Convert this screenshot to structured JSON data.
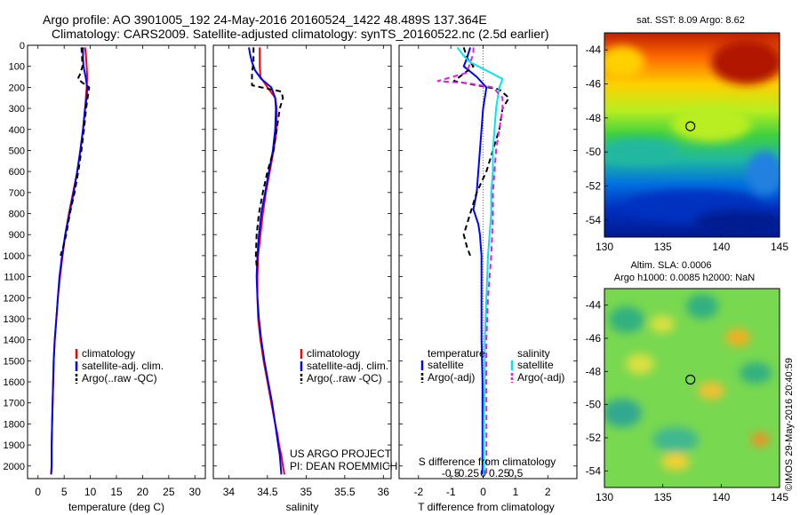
{
  "header": {
    "title_line1": "Argo profile: AO 3901005_192 24-May-2016 20160524_1422 48.489S 137.364E",
    "title_line2": "Climatology: CARS2009. Satellite-adjusted climatology: synTS_20160522.nc (2.5d earlier)"
  },
  "credits": {
    "project": "US ARGO PROJECT",
    "pi": "PI: DEAN ROEMMICH",
    "imos": "©IMOS 29-May-2016 20:40:59"
  },
  "colors": {
    "climatology": "#ff0000",
    "satellite": "#0000ff",
    "argo": "#000000",
    "satellite_s": "#00e5ee",
    "argo_s": "#e020e0"
  },
  "chart_data": [
    {
      "type": "line",
      "name": "temperature-panel",
      "xlabel": "temperature (deg C)",
      "xlim": [
        -2,
        32
      ],
      "xticks": [
        0,
        5,
        10,
        15,
        20,
        25,
        30
      ],
      "ylim": [
        2060,
        0
      ],
      "yticks": [
        0,
        100,
        200,
        300,
        400,
        500,
        600,
        700,
        800,
        900,
        1000,
        1100,
        1200,
        1300,
        1400,
        1500,
        1600,
        1700,
        1800,
        1900,
        2000
      ],
      "legend": [
        "climatology",
        "satellite-adj. clim.",
        "Argo(..raw -QC)"
      ],
      "series": [
        {
          "name": "climatology",
          "color": "#ff0000",
          "dash": false,
          "x": [
            9.0,
            9.2,
            9.3,
            9.4,
            9.3,
            9.0,
            8.6,
            8.1,
            7.5,
            6.7,
            5.9,
            5.2,
            4.7,
            4.2,
            3.8,
            3.5,
            3.2,
            3.0,
            2.9,
            2.8,
            2.7,
            2.6,
            2.6,
            2.5
          ],
          "y": [
            10,
            60,
            100,
            150,
            200,
            300,
            400,
            500,
            600,
            700,
            800,
            900,
            1000,
            1100,
            1200,
            1300,
            1400,
            1500,
            1600,
            1700,
            1800,
            1900,
            2000,
            2040
          ]
        },
        {
          "name": "satellite-adj. clim.",
          "color": "#0000ff",
          "dash": false,
          "x": [
            8.6,
            8.6,
            8.7,
            9.1,
            9.4,
            9.3,
            9.0,
            8.6,
            8.1,
            7.5,
            6.8,
            6.0,
            5.2,
            4.6,
            4.1,
            3.8,
            3.5,
            3.2,
            3.0,
            2.9,
            2.8,
            2.7,
            2.6,
            2.6,
            2.5
          ],
          "y": [
            10,
            60,
            100,
            150,
            200,
            250,
            300,
            400,
            500,
            600,
            700,
            800,
            900,
            1000,
            1100,
            1200,
            1300,
            1400,
            1500,
            1600,
            1700,
            1800,
            1900,
            2000,
            2040
          ]
        },
        {
          "name": "Argo(..raw -QC)",
          "color": "#000000",
          "dash": true,
          "x": [
            8.3,
            8.4,
            8.5,
            8.0,
            7.6,
            8.6,
            9.8,
            9.6,
            9.2,
            8.8,
            8.3,
            7.7,
            7.0,
            6.1,
            5.4,
            4.8,
            4.3
          ],
          "y": [
            10,
            50,
            100,
            140,
            160,
            180,
            200,
            230,
            300,
            400,
            500,
            600,
            700,
            800,
            900,
            960,
            1000
          ]
        }
      ]
    },
    {
      "type": "line",
      "name": "salinity-panel",
      "xlabel": "salinity",
      "xlim": [
        33.8,
        36.1
      ],
      "xticks": [
        34,
        34.5,
        35,
        35.5,
        36
      ],
      "ylim": [
        2060,
        0
      ],
      "legend": [
        "climatology",
        "satellite-adj. clim.",
        "Argo(..raw -QC)"
      ],
      "series": [
        {
          "name": "climatology",
          "color": "#ff0000",
          "dash": false,
          "x": [
            34.4,
            34.4,
            34.41,
            34.5,
            34.6,
            34.62,
            34.62,
            34.58,
            34.53,
            34.48,
            34.44,
            34.41,
            34.38,
            34.37,
            34.37,
            34.38,
            34.41,
            34.45,
            34.5,
            34.55,
            34.6,
            34.63,
            34.65,
            34.68,
            34.7,
            34.72
          ],
          "y": [
            10,
            100,
            150,
            200,
            250,
            300,
            400,
            500,
            600,
            700,
            800,
            900,
            1000,
            1100,
            1200,
            1300,
            1400,
            1500,
            1600,
            1700,
            1800,
            1850,
            1900,
            1950,
            2000,
            2040
          ]
        },
        {
          "name": "satellite-adj. clim.",
          "color": "#0000ff",
          "dash": false,
          "x": [
            34.26,
            34.28,
            34.3,
            34.34,
            34.42,
            34.55,
            34.6,
            34.61,
            34.6,
            34.57,
            34.52,
            34.47,
            34.42,
            34.39,
            34.37,
            34.36,
            34.37,
            34.39,
            34.42,
            34.46,
            34.51,
            34.56,
            34.6,
            34.62,
            34.64,
            34.66,
            34.68
          ],
          "y": [
            10,
            50,
            80,
            120,
            160,
            200,
            250,
            300,
            400,
            500,
            600,
            700,
            800,
            900,
            1000,
            1100,
            1200,
            1300,
            1400,
            1500,
            1600,
            1700,
            1800,
            1850,
            1900,
            1950,
            2040
          ]
        },
        {
          "name": "Argo(..raw -QC)",
          "color": "#000000",
          "dash": true,
          "x": [
            34.32,
            34.32,
            34.3,
            34.3,
            34.42,
            34.68,
            34.7,
            34.66,
            34.62,
            34.58,
            34.5,
            34.44,
            34.39,
            34.36,
            34.35,
            34.36
          ],
          "y": [
            10,
            80,
            130,
            190,
            200,
            220,
            250,
            300,
            400,
            500,
            600,
            700,
            800,
            900,
            1000,
            1050
          ]
        }
      ]
    },
    {
      "type": "line",
      "name": "difference-panel",
      "xlabel": "T difference from climatology",
      "top_axis_label": "S difference from climatology",
      "xlim": [
        -2.6,
        2.9
      ],
      "xticks": [
        -2,
        -1,
        0,
        1,
        2
      ],
      "top_ticks": [
        "-0.5",
        "-0.25",
        "0",
        "0.25",
        "0.5"
      ],
      "ylim": [
        2060,
        0
      ],
      "legend_headers": [
        "temperature",
        "salinity"
      ],
      "legend": [
        "satellite",
        "Argo(-adj)",
        "satellite",
        "Argo(-adj)"
      ],
      "series": [
        {
          "name": "temperature satellite",
          "color": "#0000ff",
          "dash": false,
          "x": [
            -0.4,
            -0.5,
            -0.6,
            -0.2,
            0.1,
            0.0,
            -0.05,
            -0.1,
            -0.15,
            -0.2,
            -0.3,
            -0.15,
            -0.1,
            -0.05,
            -0.05,
            -0.05,
            -0.02,
            -0.02,
            -0.02,
            -0.02
          ],
          "y": [
            10,
            60,
            100,
            150,
            200,
            300,
            400,
            500,
            600,
            700,
            780,
            850,
            900,
            1000,
            1200,
            1400,
            1600,
            1800,
            1900,
            2040
          ]
        },
        {
          "name": "temperature Argo(-adj)",
          "color": "#000000",
          "dash": true,
          "x": [
            -0.6,
            -0.5,
            -0.3,
            -0.9,
            -0.2,
            0.5,
            0.8,
            0.6,
            0.5,
            0.3,
            0.1,
            -0.2,
            -0.4,
            -0.6,
            -0.5,
            -0.4
          ],
          "y": [
            10,
            60,
            100,
            170,
            190,
            210,
            250,
            300,
            400,
            500,
            600,
            700,
            800,
            900,
            960,
            1000
          ]
        },
        {
          "name": "salinity satellite",
          "color": "#00e5ee",
          "dash": false,
          "x": [
            -0.8,
            -0.6,
            -0.4,
            0.1,
            0.6,
            0.5,
            0.4,
            0.35,
            0.3,
            0.3,
            0.25,
            0.25,
            0.2,
            0.15,
            0.1,
            0.05,
            0.05,
            0.02,
            0.02
          ],
          "y": [
            10,
            50,
            80,
            120,
            160,
            200,
            300,
            400,
            500,
            600,
            700,
            800,
            900,
            1000,
            1200,
            1400,
            1600,
            1800,
            2040
          ]
        },
        {
          "name": "salinity Argo(-adj)",
          "color": "#e020e0",
          "dash": true,
          "x": [
            -0.3,
            -0.3,
            -0.4,
            -0.5,
            -1.4,
            -0.5,
            0.3,
            0.6,
            0.6,
            0.5,
            0.4,
            0.35,
            0.3,
            0.3,
            0.28,
            0.25,
            0.2,
            0.15,
            0.1,
            0.1,
            0.1,
            0.1,
            0.1
          ],
          "y": [
            10,
            40,
            80,
            130,
            170,
            180,
            200,
            250,
            300,
            400,
            500,
            600,
            700,
            800,
            900,
            1000,
            1100,
            1200,
            1400,
            1600,
            1800,
            1900,
            2040
          ]
        }
      ]
    },
    {
      "type": "heatmap",
      "name": "sst-map",
      "title": "sat. SST: 8.09  Argo: 8.62",
      "xlim": [
        130,
        145
      ],
      "ylim": [
        -55,
        -43
      ],
      "xticks": [
        130,
        135,
        140,
        145
      ],
      "yticks": [
        -44,
        -46,
        -48,
        -50,
        -52,
        -54
      ],
      "marker": {
        "lon": 137.36,
        "lat": -48.49
      }
    },
    {
      "type": "heatmap",
      "name": "sla-map",
      "title_line1": "Altim. SLA: 0.0006",
      "title_line2": "Argo h1000: 0.0085 h2000: NaN",
      "xlim": [
        130,
        145
      ],
      "ylim": [
        -55,
        -43
      ],
      "xticks": [
        130,
        135,
        140,
        145
      ],
      "yticks": [
        -44,
        -46,
        -48,
        -50,
        -52,
        -54
      ],
      "marker": {
        "lon": 137.36,
        "lat": -48.49
      }
    }
  ]
}
